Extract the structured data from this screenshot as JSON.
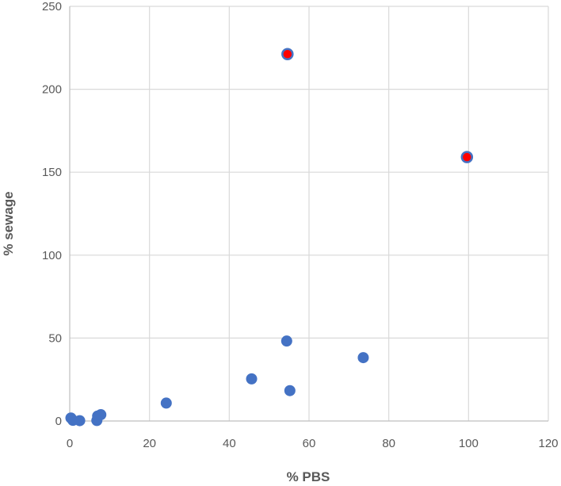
{
  "chart_data": {
    "type": "scatter",
    "title": "",
    "xlabel": "% PBS",
    "ylabel": "% sewage",
    "xlim": [
      0,
      120
    ],
    "ylim": [
      0,
      250
    ],
    "x_ticks": [
      0,
      20,
      40,
      60,
      80,
      100,
      120
    ],
    "y_ticks": [
      0,
      50,
      100,
      150,
      200,
      250
    ],
    "grid": true,
    "legend": "none",
    "marker_color": "#4472C4",
    "highlight_fill": "#FF0000",
    "points": [
      {
        "x": 0.3,
        "y": 1.8
      },
      {
        "x": 0.8,
        "y": 0.4
      },
      {
        "x": 2.5,
        "y": 0.2
      },
      {
        "x": 6.8,
        "y": 0.3
      },
      {
        "x": 7.0,
        "y": 3.0
      },
      {
        "x": 7.8,
        "y": 3.8
      },
      {
        "x": 24.2,
        "y": 10.8
      },
      {
        "x": 45.6,
        "y": 25.4
      },
      {
        "x": 54.4,
        "y": 48.2
      },
      {
        "x": 55.2,
        "y": 18.3
      },
      {
        "x": 73.6,
        "y": 38.2
      },
      {
        "x": 54.6,
        "y": 221.2,
        "highlight": true
      },
      {
        "x": 99.6,
        "y": 159.1,
        "highlight": true
      }
    ]
  }
}
